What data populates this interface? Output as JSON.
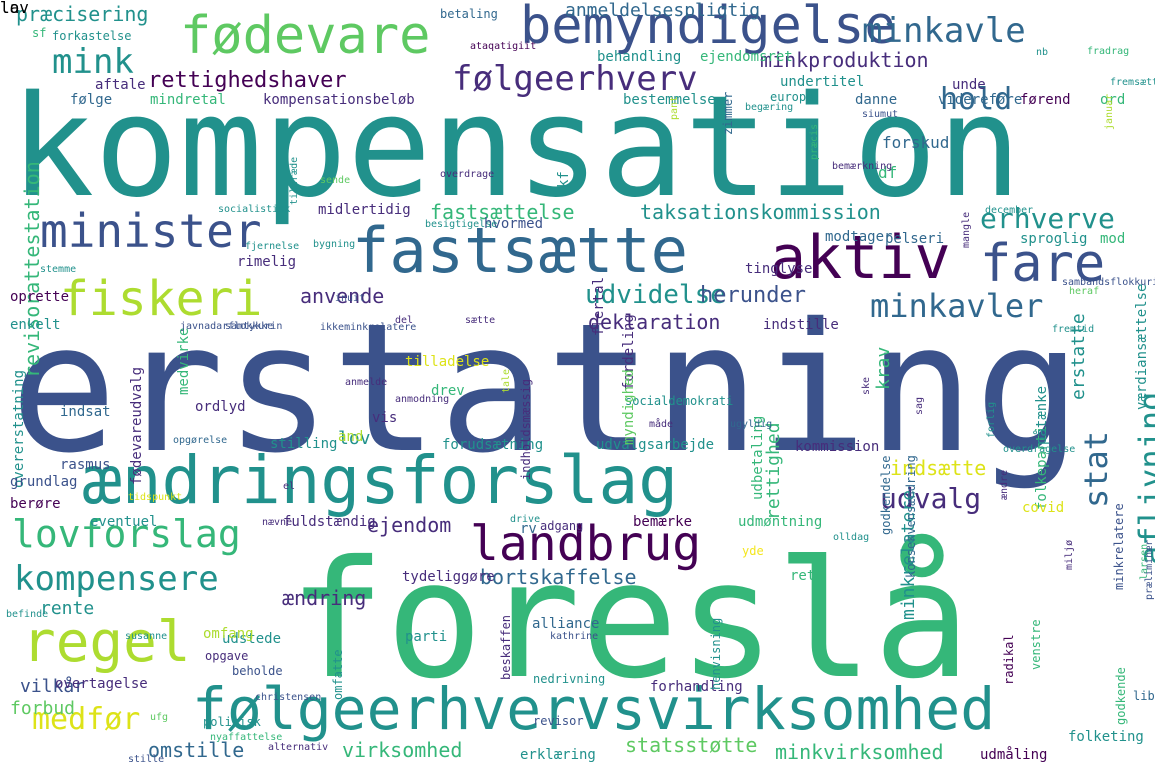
{
  "palette": {
    "navy": "#3b528b",
    "purple": "#440154",
    "indigo": "#472d7b",
    "blue": "#31688e",
    "teal": "#21918c",
    "sea": "#2a788e",
    "green": "#5ec962",
    "mint": "#35b779",
    "lime": "#addc30",
    "yellow": "#dde318",
    "pale_yellow": "#f4e61e"
  },
  "words": [
    {
      "text": "kompensation",
      "color": "teal"
    },
    {
      "text": "erstatning",
      "color": "navy"
    },
    {
      "text": "foreslå",
      "color": "mint"
    },
    {
      "text": "ændringsforslag",
      "color": "teal"
    },
    {
      "text": "følgeerhvervsvirksomhed",
      "color": "teal"
    },
    {
      "text": "bemyndigelse",
      "color": "navy"
    },
    {
      "text": "fødevare",
      "color": "green"
    },
    {
      "text": "fastsætte",
      "color": "blue"
    },
    {
      "text": "aktiv",
      "color": "purple"
    },
    {
      "text": "fare",
      "color": "navy"
    },
    {
      "text": "fiskeri",
      "color": "lime"
    },
    {
      "text": "minister",
      "color": "navy"
    },
    {
      "text": "landbrug",
      "color": "purple"
    },
    {
      "text": "regel",
      "color": "lime"
    },
    {
      "text": "lovforslag",
      "color": "mint"
    },
    {
      "text": "kompensere",
      "color": "teal"
    },
    {
      "text": "minkavle",
      "color": "blue"
    },
    {
      "text": "følgeerhverv",
      "color": "indigo"
    },
    {
      "text": "mink",
      "color": "teal"
    },
    {
      "text": "hold",
      "color": "blue"
    },
    {
      "text": "rettighedshaver",
      "color": "purple"
    },
    {
      "text": "minkavler",
      "color": "blue"
    },
    {
      "text": "stat",
      "color": "blue"
    },
    {
      "text": "aflivning",
      "color": "teal"
    },
    {
      "text": "udvalg",
      "color": "indigo"
    },
    {
      "text": "erhverve",
      "color": "teal"
    },
    {
      "text": "udvidelse",
      "color": "teal"
    },
    {
      "text": "herunder",
      "color": "navy"
    },
    {
      "text": "medfør",
      "color": "yellow"
    },
    {
      "text": "præcisering",
      "color": "teal"
    },
    {
      "text": "minkproduktion",
      "color": "indigo"
    },
    {
      "text": "fastsættelse",
      "color": "mint"
    },
    {
      "text": "taksationskommission",
      "color": "teal"
    },
    {
      "text": "deklaration",
      "color": "indigo"
    },
    {
      "text": "anvende",
      "color": "indigo"
    },
    {
      "text": "revisorattestation",
      "color": "mint"
    },
    {
      "text": "ejendom",
      "color": "indigo"
    },
    {
      "text": "bortskaffelse",
      "color": "blue"
    },
    {
      "text": "ændring",
      "color": "indigo"
    },
    {
      "text": "rente",
      "color": "teal"
    },
    {
      "text": "virksomhed",
      "color": "mint"
    },
    {
      "text": "statsstøtte",
      "color": "green"
    },
    {
      "text": "minkvirksomhed",
      "color": "mint"
    },
    {
      "text": "omstille",
      "color": "blue"
    },
    {
      "text": "vilkår",
      "color": "navy"
    },
    {
      "text": "forbud",
      "color": "green"
    },
    {
      "text": "indsætte",
      "color": "yellow"
    },
    {
      "text": "minkrelatere",
      "color": "teal"
    },
    {
      "text": "erstatte",
      "color": "teal"
    },
    {
      "text": "rettighed",
      "color": "mint"
    },
    {
      "text": "krav",
      "color": "mint"
    },
    {
      "text": "lov",
      "color": "teal"
    },
    {
      "text": "anmeldelsespligtig",
      "color": "blue"
    },
    {
      "text": "behandling",
      "color": "teal"
    },
    {
      "text": "ejendomsret",
      "color": "mint"
    },
    {
      "text": "undertitel",
      "color": "teal"
    },
    {
      "text": "kompensationsbeløb",
      "color": "indigo"
    },
    {
      "text": "bestemmelse",
      "color": "teal"
    },
    {
      "text": "mindretal",
      "color": "mint"
    },
    {
      "text": "aftale",
      "color": "indigo"
    },
    {
      "text": "følge",
      "color": "blue"
    },
    {
      "text": "danne",
      "color": "blue"
    },
    {
      "text": "videreføre",
      "color": "blue"
    },
    {
      "text": "førend",
      "color": "purple"
    },
    {
      "text": "unde",
      "color": "indigo"
    },
    {
      "text": "ord",
      "color": "mint"
    },
    {
      "text": "europa",
      "color": "teal"
    },
    {
      "text": "forskud",
      "color": "blue"
    },
    {
      "text": "df",
      "color": "mint"
    },
    {
      "text": "kf",
      "color": "teal"
    },
    {
      "text": "midlertidig",
      "color": "indigo"
    },
    {
      "text": "hvormed",
      "color": "navy"
    },
    {
      "text": "modtager",
      "color": "blue"
    },
    {
      "text": "pelseri",
      "color": "blue"
    },
    {
      "text": "sproglig",
      "color": "teal"
    },
    {
      "text": "mod",
      "color": "mint"
    },
    {
      "text": "tinglyse",
      "color": "indigo"
    },
    {
      "text": "flertal",
      "color": "indigo"
    },
    {
      "text": "indstille",
      "color": "indigo"
    },
    {
      "text": "rimelig",
      "color": "indigo"
    },
    {
      "text": "oprette",
      "color": "purple"
    },
    {
      "text": "enkelt",
      "color": "teal"
    },
    {
      "text": "medvirke",
      "color": "mint"
    },
    {
      "text": "ordlyd",
      "color": "indigo"
    },
    {
      "text": "drev",
      "color": "mint"
    },
    {
      "text": "vis",
      "color": "indigo"
    },
    {
      "text": "tilladelse",
      "color": "yellow"
    },
    {
      "text": "fordeling",
      "color": "indigo"
    },
    {
      "text": "kommission",
      "color": "indigo"
    },
    {
      "text": "udbetaling",
      "color": "mint"
    },
    {
      "text": "folkeparti",
      "color": "mint"
    },
    {
      "text": "værdiansættelse",
      "color": "teal"
    },
    {
      "text": "fødevareudvalg",
      "color": "indigo"
    },
    {
      "text": "overerstatning",
      "color": "teal"
    },
    {
      "text": "indsat",
      "color": "blue"
    },
    {
      "text": "stilling",
      "color": "teal"
    },
    {
      "text": "forudsætning",
      "color": "teal"
    },
    {
      "text": "udvalgsarbejde",
      "color": "teal"
    },
    {
      "text": "indholdsmæssig",
      "color": "indigo"
    },
    {
      "text": "rasmus",
      "color": "navy"
    },
    {
      "text": "grundlag",
      "color": "navy"
    },
    {
      "text": "berøre",
      "color": "purple"
    },
    {
      "text": "eventuel",
      "color": "teal"
    },
    {
      "text": "fuldstændig",
      "color": "indigo"
    },
    {
      "text": "bemærke",
      "color": "purple"
    },
    {
      "text": "udmøntning",
      "color": "mint"
    },
    {
      "text": "rv",
      "color": "blue"
    },
    {
      "text": "adgang",
      "color": "indigo"
    },
    {
      "text": "covid",
      "color": "yellow"
    },
    {
      "text": "ret",
      "color": "mint"
    },
    {
      "text": "yde",
      "color": "pale_yellow"
    },
    {
      "text": "godkendelse",
      "color": "blue"
    },
    {
      "text": "minkrelatere",
      "color": "navy"
    },
    {
      "text": "konsekvensændring",
      "color": "blue"
    },
    {
      "text": "tydeliggøre",
      "color": "indigo"
    },
    {
      "text": "udstede",
      "color": "teal"
    },
    {
      "text": "alliance",
      "color": "blue"
    },
    {
      "text": "omfang",
      "color": "lime"
    },
    {
      "text": "parti",
      "color": "teal"
    },
    {
      "text": "opgave",
      "color": "indigo"
    },
    {
      "text": "beholde",
      "color": "navy"
    },
    {
      "text": "omfatte",
      "color": "teal"
    },
    {
      "text": "nedrivning",
      "color": "teal"
    },
    {
      "text": "revisor",
      "color": "navy"
    },
    {
      "text": "beskaffen",
      "color": "indigo"
    },
    {
      "text": "forhandling",
      "color": "indigo"
    },
    {
      "text": "overtagelse",
      "color": "indigo"
    },
    {
      "text": "politisk",
      "color": "teal"
    },
    {
      "text": "erklæring",
      "color": "teal"
    },
    {
      "text": "udmåling",
      "color": "purple"
    },
    {
      "text": "godkende",
      "color": "mint"
    },
    {
      "text": "henvisning",
      "color": "teal"
    },
    {
      "text": "venstre",
      "color": "mint"
    },
    {
      "text": "liberal",
      "color": "blue"
    },
    {
      "text": "folketing",
      "color": "teal"
    },
    {
      "text": "radikal",
      "color": "purple"
    },
    {
      "text": "sf",
      "color": "mint"
    },
    {
      "text": "forkastelse",
      "color": "teal"
    },
    {
      "text": "betaling",
      "color": "blue"
    },
    {
      "text": "nb",
      "color": "teal"
    },
    {
      "text": "fradrag",
      "color": "mint"
    },
    {
      "text": "fremsætte",
      "color": "teal"
    },
    {
      "text": "begæring",
      "color": "teal"
    },
    {
      "text": "siumut",
      "color": "navy"
    },
    {
      "text": "zimmer",
      "color": "blue"
    },
    {
      "text": "præcis",
      "color": "mint"
    },
    {
      "text": "januar",
      "color": "lime"
    },
    {
      "text": "bemærkning",
      "color": "indigo"
    },
    {
      "text": "overdrage",
      "color": "indigo"
    },
    {
      "text": "sende",
      "color": "green"
    },
    {
      "text": "tiltræde",
      "color": "teal"
    },
    {
      "text": "pant",
      "color": "lime"
    },
    {
      "text": "socialistisk",
      "color": "teal"
    },
    {
      "text": "besigtigelse",
      "color": "teal"
    },
    {
      "text": "december",
      "color": "teal"
    },
    {
      "text": "bygning",
      "color": "teal"
    },
    {
      "text": "fjernelse",
      "color": "teal"
    },
    {
      "text": "stemme",
      "color": "teal"
    },
    {
      "text": "sambandsflokkurin",
      "color": "navy"
    },
    {
      "text": "inuit",
      "color": "navy"
    },
    {
      "text": "heraf",
      "color": "green"
    },
    {
      "text": "del",
      "color": "indigo"
    },
    {
      "text": "sætte",
      "color": "indigo"
    },
    {
      "text": "samtykke",
      "color": "navy"
    },
    {
      "text": "javnadarflokkurin",
      "color": "navy"
    },
    {
      "text": "ikkeminkrelatere",
      "color": "navy"
    },
    {
      "text": "fremtid",
      "color": "teal"
    },
    {
      "text": "anmelde",
      "color": "indigo"
    },
    {
      "text": "tale",
      "color": "lime"
    },
    {
      "text": "anmodning",
      "color": "indigo"
    },
    {
      "text": "socialdemokrati",
      "color": "teal"
    },
    {
      "text": "måde",
      "color": "indigo"
    },
    {
      "text": "ugyldig",
      "color": "blue"
    },
    {
      "text": "ske",
      "color": "indigo"
    },
    {
      "text": "sag",
      "color": "indigo"
    },
    {
      "text": "påtænke",
      "color": "teal"
    },
    {
      "text": "myndighed",
      "color": "green"
    },
    {
      "text": "tidspunkt",
      "color": "yellow"
    },
    {
      "text": "opgørelse",
      "color": "blue"
    },
    {
      "text": "overdragelse",
      "color": "teal"
    },
    {
      "text": "forlig",
      "color": "teal"
    },
    {
      "text": "ændre",
      "color": "indigo"
    },
    {
      "text": "el",
      "color": "indigo"
    },
    {
      "text": "nævne",
      "color": "indigo"
    },
    {
      "text": "drive",
      "color": "teal"
    },
    {
      "text": "olldag",
      "color": "teal"
    },
    {
      "text": "miljø",
      "color": "indigo"
    },
    {
      "text": "susanne",
      "color": "teal"
    },
    {
      "text": "befinde",
      "color": "teal"
    },
    {
      "text": "kathrine",
      "color": "navy"
    },
    {
      "text": "larsen",
      "color": "mint"
    },
    {
      "text": "præliminær",
      "color": "navy"
    },
    {
      "text": "christensen",
      "color": "navy"
    },
    {
      "text": "nyaffattelse",
      "color": "mint"
    },
    {
      "text": "ufg",
      "color": "green"
    },
    {
      "text": "alternativ",
      "color": "indigo"
    },
    {
      "text": "stille",
      "color": "navy"
    },
    {
      "text": "mangle",
      "color": "indigo"
    },
    {
      "text": "ataqatigiit",
      "color": "purple"
    },
    {
      "text": "and",
      "color": "lime"
    },
    {
      "text": "la",
      "color": "mint"
    },
    {
      "text": "lov",
      "color": "mint"
    }
  ]
}
